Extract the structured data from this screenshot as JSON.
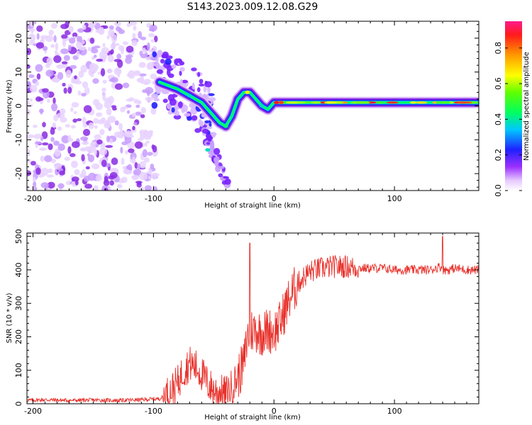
{
  "figure": {
    "title": "S143.2023.009.12.08.G29"
  },
  "chart_data": [
    {
      "type": "heatmap",
      "title": "",
      "xlabel": "Height of straight line (km)",
      "ylabel": "Frequency (Hz)",
      "xlim": [
        -205,
        170
      ],
      "ylim": [
        -25,
        25
      ],
      "xticks": [
        "-200",
        "-100",
        "0",
        "100"
      ],
      "yticks": [
        "-20",
        "-10",
        "0",
        "10",
        "20"
      ],
      "colorbar": {
        "label": "Normalized spectral amplitude",
        "range": [
          0,
          0.95
        ],
        "ticks": [
          "0.0",
          "0.2",
          "0.4",
          "0.6",
          "0.8"
        ]
      },
      "description_points": {
        "x": [
          -95,
          -80,
          -70,
          -60,
          -50,
          -45,
          -40,
          -35,
          -30,
          -25,
          -20,
          -15,
          -10,
          -5,
          0,
          20,
          50,
          100,
          150,
          170
        ],
        "peak_frequency": [
          7,
          5,
          3,
          1,
          -3,
          -5,
          -6,
          -3,
          2,
          4,
          4,
          2,
          0,
          -1,
          1,
          1,
          1,
          1,
          1,
          1
        ]
      }
    },
    {
      "type": "line",
      "title": "",
      "xlabel": "Height of straight line (km)",
      "ylabel": "SNR (10 * v/v)",
      "xlim": [
        -205,
        170
      ],
      "ylim": [
        0,
        510
      ],
      "xticks": [
        "-200",
        "-100",
        "0",
        "100"
      ],
      "yticks": [
        "0",
        "100",
        "200",
        "300",
        "400",
        "500"
      ],
      "series": [
        {
          "name": "SNR",
          "color": "#e8302a",
          "x": [
            -205,
            -190,
            -170,
            -150,
            -130,
            -110,
            -95,
            -88,
            -80,
            -75,
            -70,
            -65,
            -60,
            -55,
            -50,
            -45,
            -40,
            -35,
            -30,
            -25,
            -22,
            -20,
            -18,
            -15,
            -10,
            -5,
            0,
            5,
            10,
            15,
            20,
            25,
            30,
            40,
            50,
            60,
            70,
            80,
            90,
            100,
            110,
            120,
            130,
            138,
            140,
            145,
            150,
            160,
            170
          ],
          "y": [
            10,
            12,
            10,
            11,
            10,
            12,
            15,
            30,
            60,
            100,
            120,
            110,
            90,
            60,
            40,
            35,
            30,
            50,
            80,
            120,
            200,
            210,
            220,
            220,
            210,
            220,
            215,
            240,
            290,
            330,
            360,
            380,
            395,
            405,
            410,
            410,
            405,
            405,
            405,
            400,
            400,
            400,
            400,
            410,
            400,
            400,
            405,
            400,
            400
          ]
        }
      ],
      "spikes": {
        "x": [
          -20,
          140
        ],
        "y": [
          480,
          500
        ]
      }
    }
  ]
}
